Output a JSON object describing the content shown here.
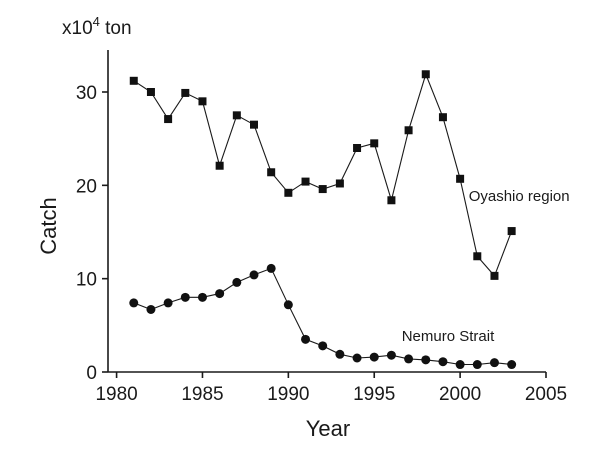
{
  "chart_data": {
    "type": "line",
    "title": "",
    "xlabel": "Year",
    "ylabel": "Catch",
    "unit_label": {
      "prefix": "x10",
      "exponent": "4",
      "suffix": " ton"
    },
    "xlim": [
      1979.5,
      2005
    ],
    "ylim": [
      0,
      34.5
    ],
    "x_ticks": [
      1980,
      1985,
      1990,
      1995,
      2000,
      2005
    ],
    "y_ticks": [
      0,
      10,
      20,
      30
    ],
    "legend": "none",
    "grid": false,
    "series": [
      {
        "name": "Oyashio region",
        "marker": "square",
        "label_anchor": {
          "x": 2000.5,
          "y": 18.3
        },
        "x": [
          1981,
          1982,
          1983,
          1984,
          1985,
          1986,
          1987,
          1988,
          1989,
          1990,
          1991,
          1992,
          1993,
          1994,
          1995,
          1996,
          1997,
          1998,
          1999,
          2000,
          2001,
          2002,
          2003
        ],
        "values": [
          31.2,
          30.0,
          27.1,
          29.9,
          29.0,
          22.1,
          27.5,
          26.5,
          21.4,
          19.2,
          20.4,
          19.6,
          20.2,
          24.0,
          24.5,
          18.4,
          25.9,
          31.9,
          27.3,
          20.7,
          12.4,
          10.3,
          15.1
        ]
      },
      {
        "name": "Nemuro Strait",
        "marker": "circle",
        "label_anchor": {
          "x": 1996.6,
          "y": 3.3
        },
        "x": [
          1981,
          1982,
          1983,
          1984,
          1985,
          1986,
          1987,
          1988,
          1989,
          1990,
          1991,
          1992,
          1993,
          1994,
          1995,
          1996,
          1997,
          1998,
          1999,
          2000,
          2001,
          2002,
          2003
        ],
        "values": [
          7.4,
          6.7,
          7.4,
          8.0,
          8.0,
          8.4,
          9.6,
          10.4,
          11.1,
          7.2,
          3.5,
          2.8,
          1.9,
          1.5,
          1.6,
          1.8,
          1.4,
          1.3,
          1.1,
          0.8,
          0.8,
          1.0,
          0.8
        ]
      }
    ]
  }
}
